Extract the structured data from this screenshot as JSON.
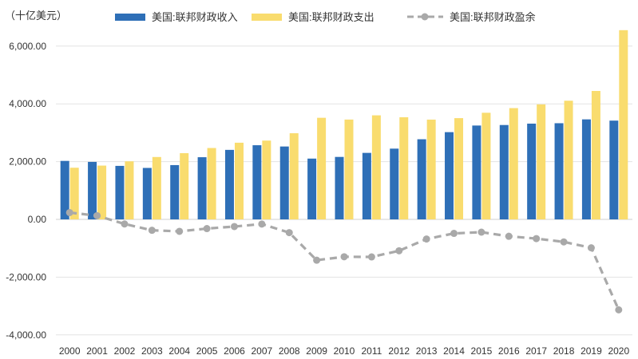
{
  "chart_data": {
    "type": "bar",
    "unit_label": "（十亿美元）",
    "categories": [
      "2000",
      "2001",
      "2002",
      "2003",
      "2004",
      "2005",
      "2006",
      "2007",
      "2008",
      "2009",
      "2010",
      "2011",
      "2012",
      "2013",
      "2014",
      "2015",
      "2016",
      "2017",
      "2018",
      "2019",
      "2020"
    ],
    "y_ticks": [
      "6,000.00",
      "4,000.00",
      "2,000.00",
      "0.00",
      "-2,000.00",
      "-4,000.00"
    ],
    "y_tick_values": [
      6000,
      4000,
      2000,
      0,
      -2000,
      -4000
    ],
    "ylim": [
      -4000,
      6400
    ],
    "grid": true,
    "legend_position": "top",
    "series": [
      {
        "name": "美国:联邦财政收入",
        "type": "bar",
        "color": "#2e6fb7",
        "values": [
          2025,
          1991,
          1853,
          1782,
          1880,
          2153,
          2407,
          2568,
          2524,
          2105,
          2163,
          2303,
          2450,
          2775,
          3021,
          3250,
          3268,
          3316,
          3330,
          3463,
          3420
        ]
      },
      {
        "name": "美国:联邦财政支出",
        "type": "bar",
        "color": "#f9dc6e",
        "values": [
          1789,
          1863,
          2011,
          2160,
          2293,
          2472,
          2655,
          2729,
          2983,
          3518,
          3457,
          3603,
          3537,
          3455,
          3506,
          3692,
          3853,
          3982,
          4109,
          4447,
          6552
        ]
      },
      {
        "name": "美国:联邦财政盈余",
        "type": "line",
        "color": "#a9a9a9",
        "values": [
          236,
          128,
          -158,
          -378,
          -413,
          -318,
          -248,
          -161,
          -459,
          -1413,
          -1294,
          -1300,
          -1087,
          -680,
          -485,
          -442,
          -585,
          -665,
          -779,
          -984,
          -3132
        ]
      }
    ]
  }
}
